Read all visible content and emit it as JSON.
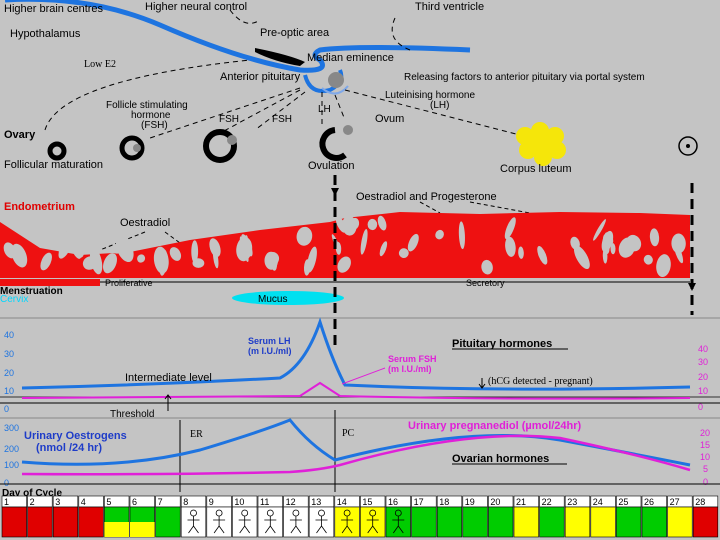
{
  "pituitary": {
    "higher_brain_centres": "Higher brain centres",
    "higher_neural_control": "Higher neural control",
    "third_ventricle": "Third ventricle",
    "hypothalamus": "Hypothalamus",
    "pre_optic_area": "Pre-optic area",
    "low_e2": "Low E2",
    "median_eminence": "Median eminence",
    "anterior_pituitary": "Anterior pituitary",
    "releasing_factors": "Releasing factors to anterior pituitary via portal system",
    "fsh_label_line1": "Follicle stimulating",
    "fsh_label_line2": "hormone",
    "fsh_label_line3": "(FSH)",
    "lh_short": "LH",
    "lh_label_line1": "Luteinising hormone",
    "lh_label_line2": "(LH)",
    "fsh_short_1": "FSH",
    "fsh_short_2": "FSH"
  },
  "ovary": {
    "title": "Ovary",
    "follicular_maturation": "Follicular maturation",
    "ovulation": "Ovulation",
    "ovum": "Ovum",
    "corpus_luteum": "Corpus luteum"
  },
  "endometrium": {
    "title": "Endometrium",
    "oestradiol": "Oestradiol",
    "oestradiol_progesterone": "Oestradiol and Progesterone",
    "menstruation": "Menstruation",
    "proliferative": "Proliferative",
    "secretory": "Secretory",
    "cervix": "Cervix",
    "mucus": "Mucus"
  },
  "hormone_chart": {
    "left_ticks": [
      "40",
      "30",
      "20",
      "10",
      "0"
    ],
    "right_ticks": [
      "40",
      "30",
      "20",
      "10",
      "0"
    ],
    "serum_lh_line1": "Serum LH",
    "serum_lh_line2": "(m I.U./ml)",
    "serum_fsh_line1": "Serum FSH",
    "serum_fsh_line2": "(m I.U./ml)",
    "pituitary_hormones": "Pituitary hormones",
    "intermediate_level": "Intermediate level",
    "hcg_detected": "(hCG detected - pregnant)",
    "threshold": "Threshold",
    "colors": {
      "lh": "#1e74e0",
      "fsh": "#e020d8"
    }
  },
  "ovarian_chart": {
    "left_ticks": [
      "300",
      "200",
      "100",
      "0"
    ],
    "right_ticks": [
      "20",
      "15",
      "10",
      "5",
      "0"
    ],
    "urinary_oestrogens_line1": "Urinary Oestrogens",
    "urinary_oestrogens_line2": "(nmol /24 hr)",
    "urinary_pregnanediol": "Urinary pregnanediol (µmol/24hr)",
    "ovarian_hormones": "Ovarian hormones",
    "er_label": "ER",
    "pc_label": "PC"
  },
  "cycle": {
    "title": "Day of Cycle",
    "days": [
      {
        "n": "1",
        "color": "red"
      },
      {
        "n": "2",
        "color": "red"
      },
      {
        "n": "3",
        "color": "red"
      },
      {
        "n": "4",
        "color": "red"
      },
      {
        "n": "5",
        "color": "green-yellow"
      },
      {
        "n": "6",
        "color": "green-yellow"
      },
      {
        "n": "7",
        "color": "green"
      },
      {
        "n": "8",
        "color": "white-baby"
      },
      {
        "n": "9",
        "color": "white-baby"
      },
      {
        "n": "10",
        "color": "white-baby"
      },
      {
        "n": "11",
        "color": "white-baby"
      },
      {
        "n": "12",
        "color": "white-baby"
      },
      {
        "n": "13",
        "color": "white-baby"
      },
      {
        "n": "14",
        "color": "yellow-baby"
      },
      {
        "n": "15",
        "color": "yellow-baby"
      },
      {
        "n": "16",
        "color": "green-baby"
      },
      {
        "n": "17",
        "color": "green"
      },
      {
        "n": "18",
        "color": "green"
      },
      {
        "n": "19",
        "color": "green"
      },
      {
        "n": "20",
        "color": "green"
      },
      {
        "n": "21",
        "color": "yellow"
      },
      {
        "n": "22",
        "color": "green"
      },
      {
        "n": "23",
        "color": "yellow"
      },
      {
        "n": "24",
        "color": "yellow"
      },
      {
        "n": "25",
        "color": "green"
      },
      {
        "n": "26",
        "color": "green"
      },
      {
        "n": "27",
        "color": "yellow"
      },
      {
        "n": "28",
        "color": "red"
      }
    ]
  }
}
